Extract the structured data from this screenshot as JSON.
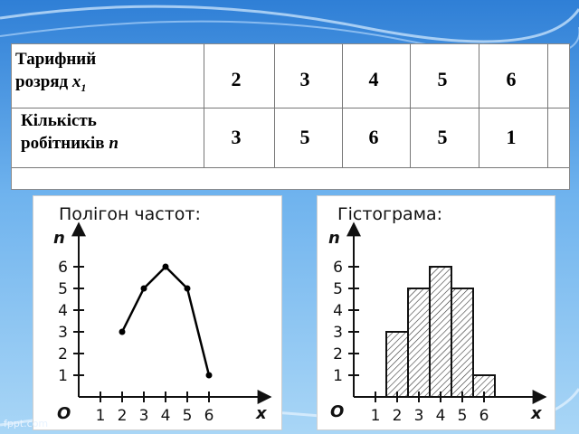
{
  "table": {
    "row1_label_line1": "Тарифний",
    "row1_label_line2": "розряд",
    "row1_var": "x",
    "row1_sub": "1",
    "row2_label_line1": "Кількість",
    "row2_label_line2": "робітників",
    "row2_var": "n",
    "grades": [
      "2",
      "3",
      "4",
      "5",
      "6"
    ],
    "counts": [
      "3",
      "5",
      "6",
      "5",
      "1"
    ]
  },
  "chart_data": [
    {
      "type": "line",
      "title": "Полігон частот:",
      "xlabel": "x",
      "ylabel": "n",
      "origin_label": "O",
      "x": [
        2,
        3,
        4,
        5,
        6
      ],
      "y": [
        3,
        5,
        6,
        5,
        1
      ],
      "xticks": [
        "1",
        "2",
        "3",
        "4",
        "5",
        "6"
      ],
      "yticks": [
        "1",
        "2",
        "3",
        "4",
        "5",
        "6"
      ],
      "xlim": [
        0,
        7
      ],
      "ylim": [
        0,
        7
      ],
      "grid": false,
      "color": "#000000"
    },
    {
      "type": "bar",
      "title": "Гістограма:",
      "xlabel": "x",
      "ylabel": "n",
      "origin_label": "O",
      "categories": [
        "2",
        "3",
        "4",
        "5",
        "6"
      ],
      "values": [
        3,
        5,
        6,
        5,
        1
      ],
      "xticks": [
        "1",
        "2",
        "3",
        "4",
        "5",
        "6"
      ],
      "yticks": [
        "1",
        "2",
        "3",
        "4",
        "5",
        "6"
      ],
      "xlim": [
        0,
        7
      ],
      "ylim": [
        0,
        7
      ],
      "grid": false,
      "fill": "hatched"
    }
  ],
  "watermark": "fppt.com"
}
